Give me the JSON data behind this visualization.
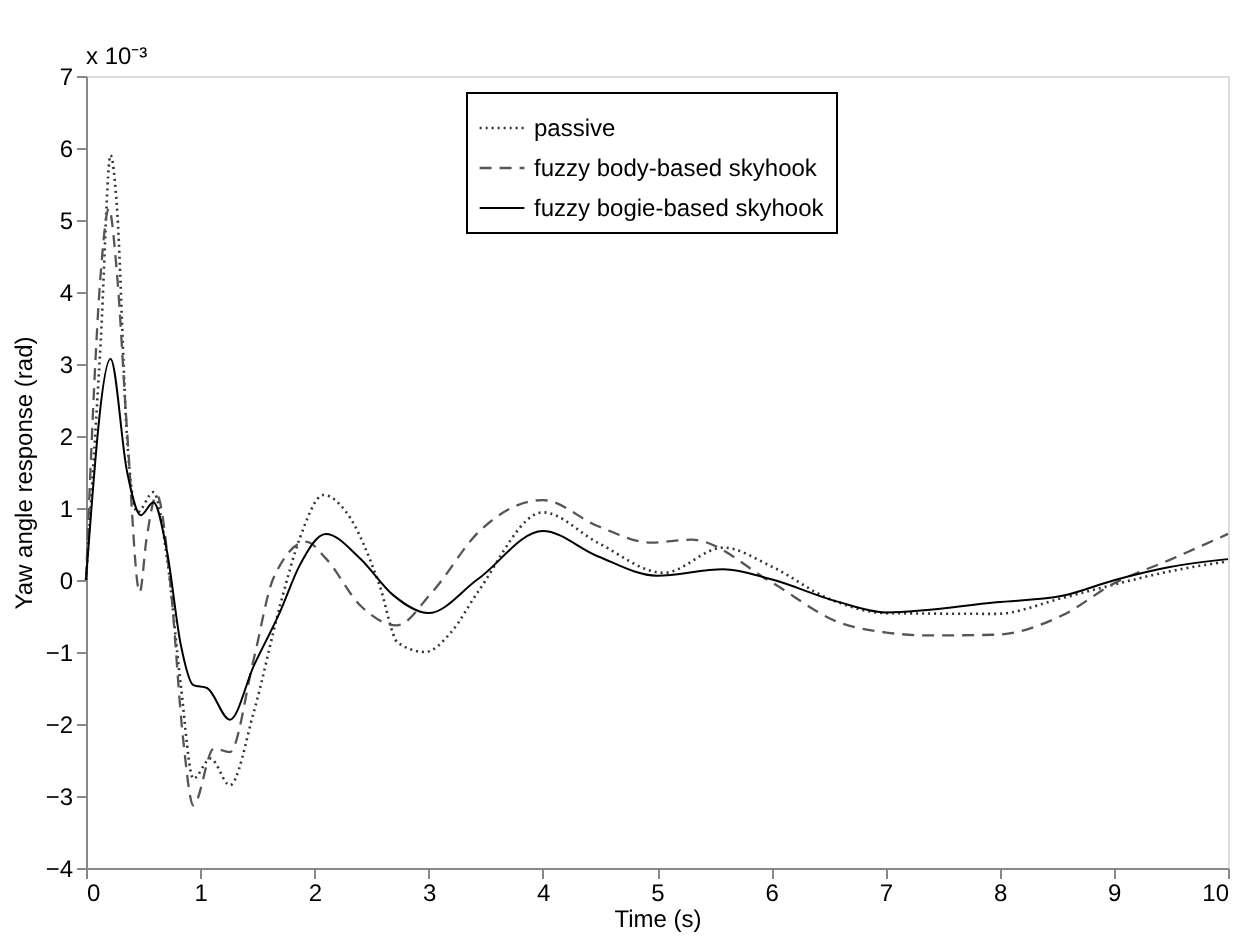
{
  "chart_data": {
    "type": "line",
    "xlabel": "Time (s)",
    "ylabel": "Yaw angle response (rad)",
    "annotations": [
      "x 10⁻³"
    ],
    "xlim": [
      0,
      10
    ],
    "ylim": [
      -4,
      7
    ],
    "xticks": [
      0,
      1,
      2,
      3,
      4,
      5,
      6,
      7,
      8,
      9,
      10
    ],
    "yticks": [
      -4,
      -3,
      -2,
      -1,
      0,
      1,
      2,
      3,
      4,
      5,
      6,
      7
    ],
    "grid": false,
    "legend": "top",
    "marker": "none",
    "series": [
      {
        "name": "passive",
        "color": "#333333",
        "line_style": "dotted",
        "x": [
          0,
          0.13,
          0.215,
          0.27,
          0.36,
          0.45,
          0.59,
          0.71,
          0.83,
          0.94,
          1.09,
          1.26,
          1.47,
          1.7,
          1.87,
          2.08,
          2.28,
          2.57,
          2.73,
          2.97,
          3.2,
          3.43,
          4.0,
          4.48,
          5.06,
          5.58,
          6.0,
          6.52,
          7.01,
          7.97,
          8.55,
          9.01,
          9.49,
          10
        ],
        "values": [
          0,
          3.35,
          5.9,
          5.2,
          1.96,
          0.94,
          1.22,
          0.3,
          -1.46,
          -2.76,
          -2.48,
          -2.85,
          -1.83,
          -0.35,
          0.57,
          1.18,
          0.94,
          -0.07,
          -0.87,
          -1.0,
          -0.72,
          -0.17,
          0.94,
          0.52,
          0.1,
          0.45,
          0.19,
          -0.27,
          -0.46,
          -0.47,
          -0.25,
          -0.06,
          0.12,
          0.26
        ]
      },
      {
        "name": "fuzzy body-based skyhook",
        "color": "#555555",
        "line_style": "dashed",
        "x": [
          0,
          0.13,
          0.2,
          0.27,
          0.36,
          0.47,
          0.53,
          0.62,
          0.74,
          0.85,
          0.94,
          1.12,
          1.26,
          1.47,
          1.64,
          1.93,
          2.1,
          2.4,
          2.72,
          3.03,
          3.44,
          4.0,
          4.48,
          4.95,
          5.3,
          6.0,
          6.58,
          7.01,
          7.39,
          7.97,
          8.55,
          9.01,
          9.49,
          10
        ],
        "values": [
          0,
          4.28,
          5.16,
          4.28,
          2.06,
          -0.17,
          0.57,
          1.18,
          -0.07,
          -2.2,
          -3.13,
          -2.34,
          -2.39,
          -1.09,
          0.02,
          0.53,
          0.3,
          -0.35,
          -0.63,
          -0.17,
          0.67,
          1.11,
          0.75,
          0.52,
          0.56,
          -0.03,
          -0.58,
          -0.73,
          -0.77,
          -0.76,
          -0.49,
          -0.04,
          0.28,
          0.64
        ]
      },
      {
        "name": "fuzzy bogie-based skyhook",
        "color": "#000000",
        "line_style": "solid",
        "x": [
          0,
          0.215,
          0.36,
          0.48,
          0.59,
          0.71,
          0.83,
          0.94,
          1.06,
          1.26,
          1.47,
          1.7,
          1.87,
          2.1,
          2.4,
          2.69,
          3.0,
          3.43,
          4.0,
          4.48,
          5.0,
          5.58,
          6.0,
          6.58,
          7.01,
          7.97,
          8.55,
          9.01,
          9.49,
          10
        ],
        "values": [
          0,
          3.07,
          1.5,
          0.9,
          1.08,
          0.39,
          -0.9,
          -1.46,
          -1.5,
          -1.94,
          -1.19,
          -0.44,
          0.2,
          0.64,
          0.3,
          -0.21,
          -0.46,
          0.01,
          0.68,
          0.33,
          0.06,
          0.15,
          0.01,
          -0.3,
          -0.45,
          -0.31,
          -0.22,
          0.0,
          0.18,
          0.29
        ]
      }
    ]
  }
}
